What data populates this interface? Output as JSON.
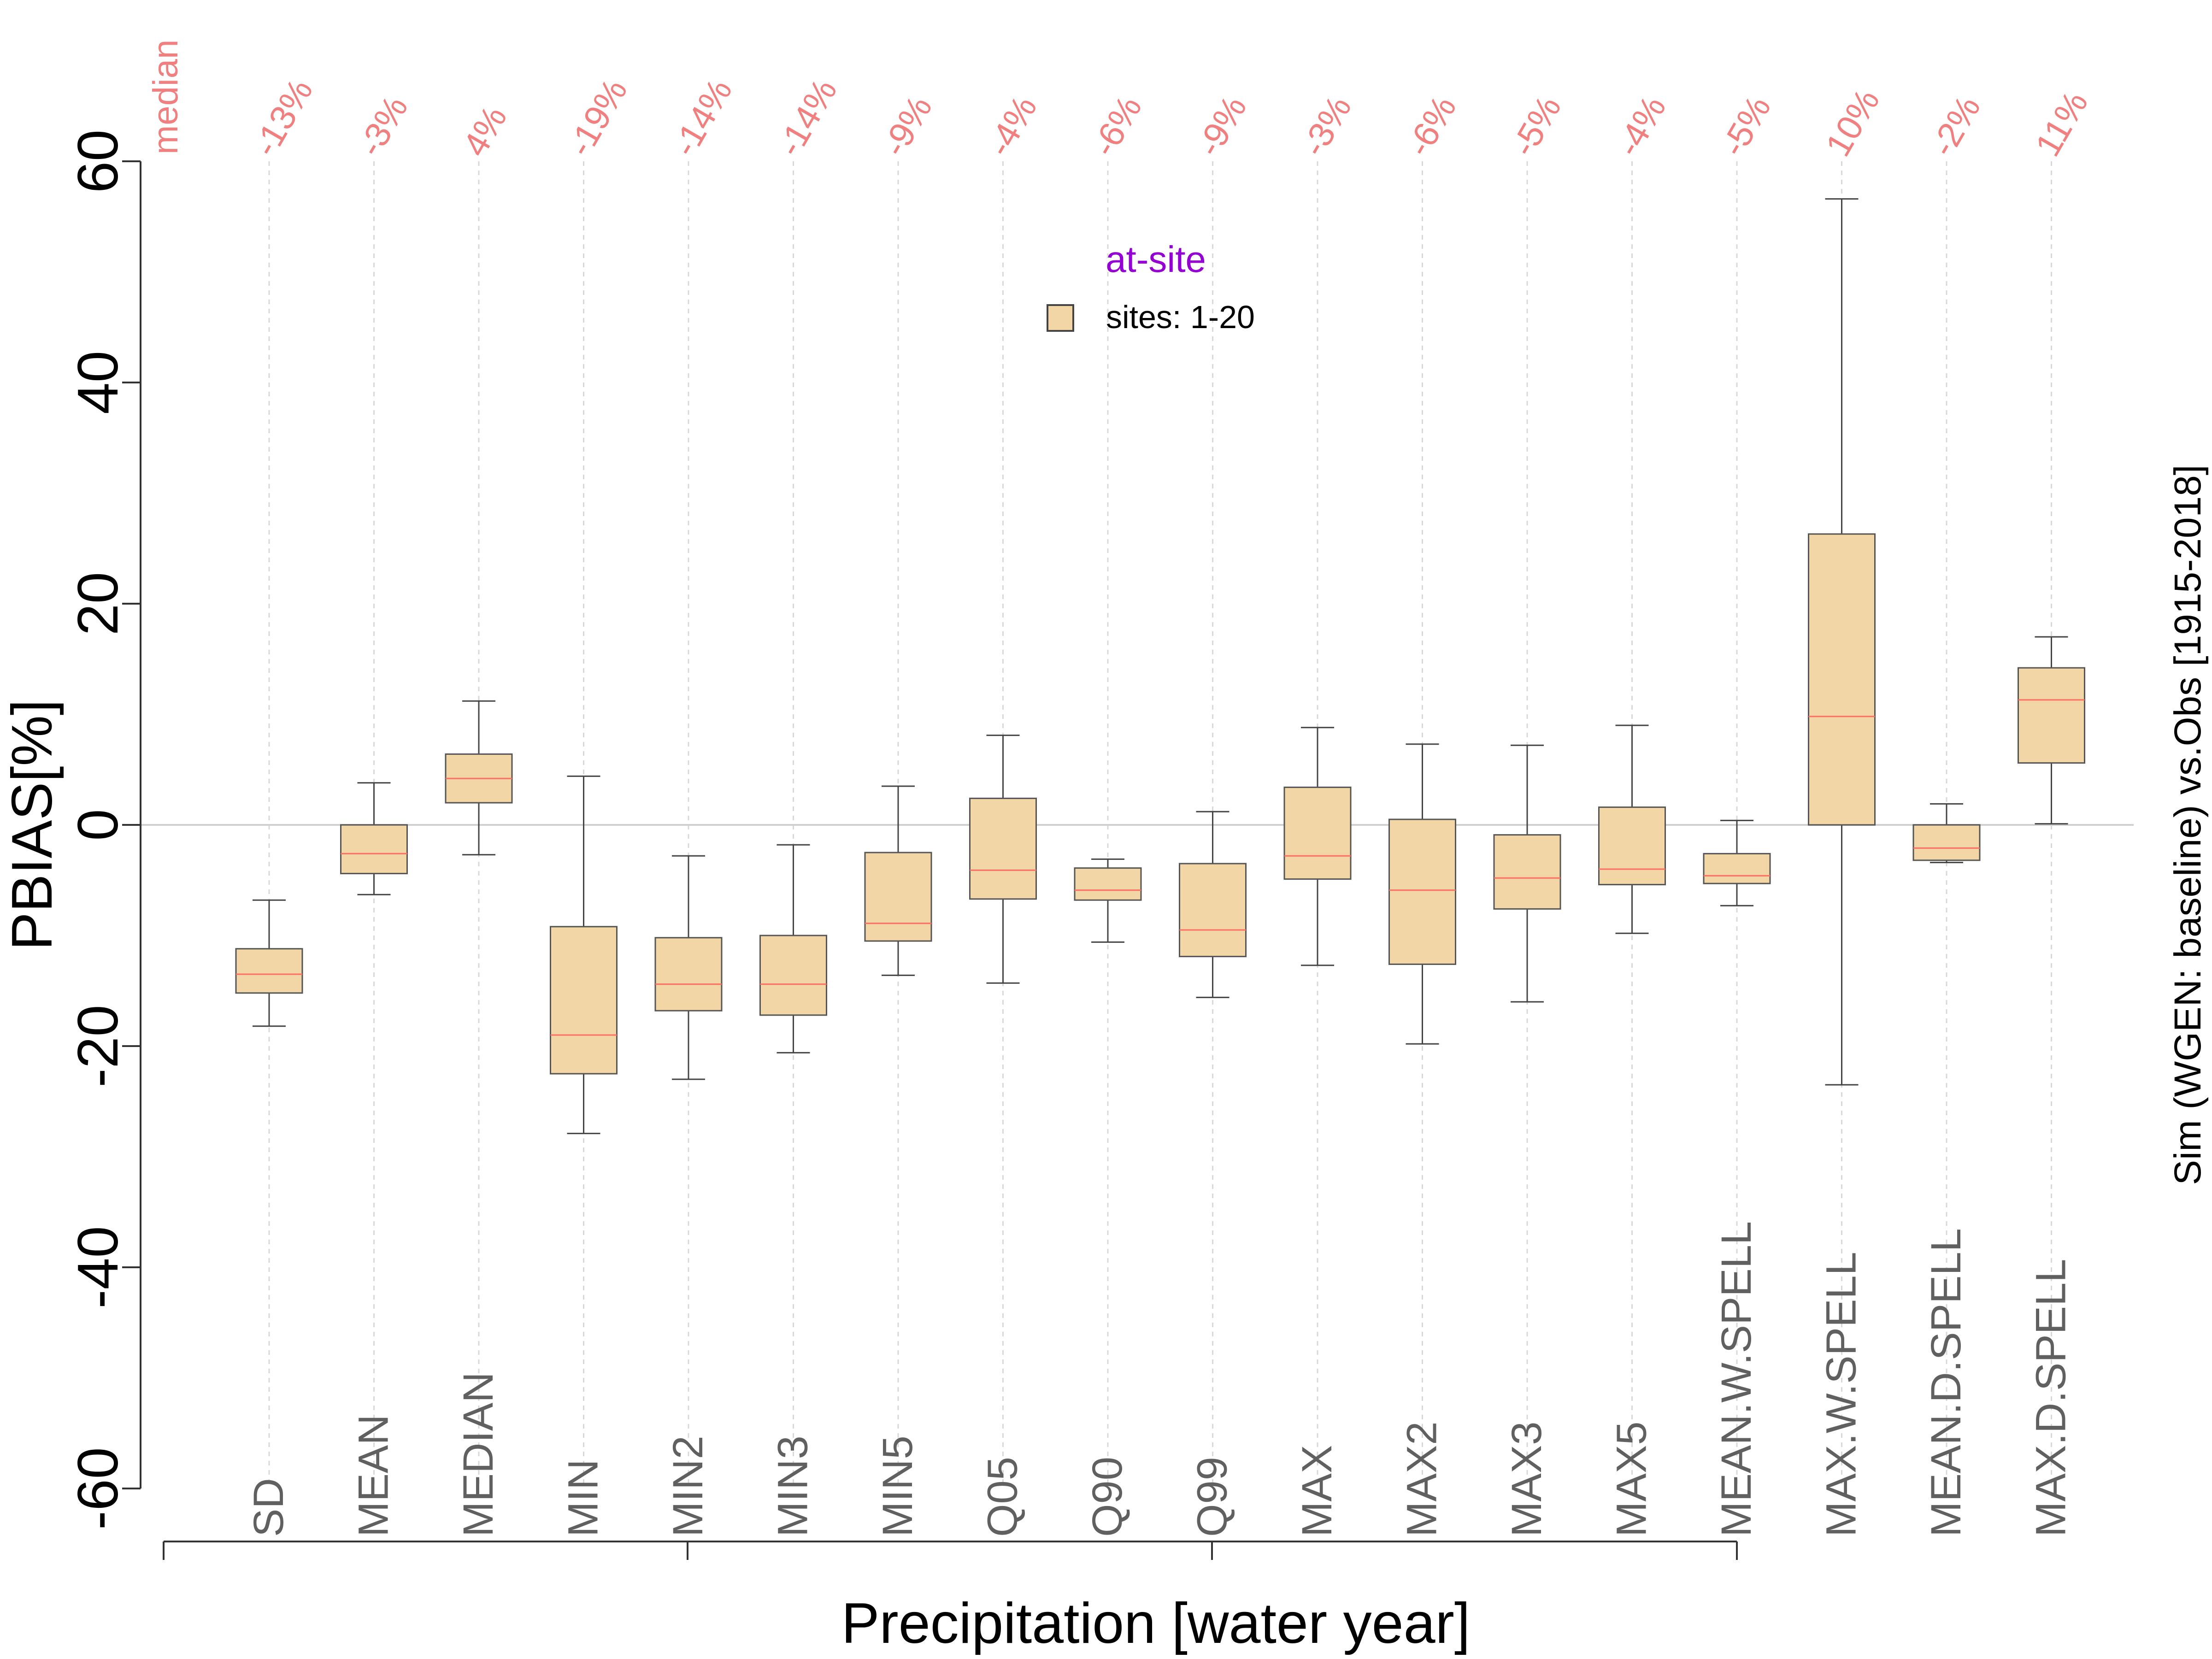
{
  "chart_data": {
    "type": "box",
    "xlabel": "Precipitation [water year]",
    "ylabel": "PBIAS[%]",
    "right_label": "Sim (WGEN: baseline) vs.Obs [1915-2018]",
    "median_row_label": "median",
    "ylim": [
      -60,
      60
    ],
    "yticks": [
      -60,
      -40,
      -20,
      0,
      20,
      40,
      60
    ],
    "legend": {
      "title": "at-site",
      "entry": "sites: 1-20",
      "position": "top-center"
    },
    "colors": {
      "box_fill": "#F3D6A5",
      "median_line": "#FF6F61",
      "pct_text": "#F08080",
      "legend_title": "#9400D3",
      "axis_text": "#606060"
    },
    "categories": [
      "SD",
      "MEAN",
      "MEDIAN",
      "MIN",
      "MIN2",
      "MIN3",
      "MIN5",
      "Q05",
      "Q90",
      "Q99",
      "MAX",
      "MAX2",
      "MAX3",
      "MAX5",
      "MEAN.W.SPELL",
      "MAX.W.SPELL",
      "MEAN.D.SPELL",
      "MAX.D.SPELL"
    ],
    "median_pct": [
      "-13%",
      "-3%",
      "4%",
      "-19%",
      "-14%",
      "-14%",
      "-9%",
      "-4%",
      "-6%",
      "-9%",
      "-3%",
      "-6%",
      "-5%",
      "-4%",
      "-5%",
      "10%",
      "-2%",
      "11%"
    ],
    "boxes": [
      {
        "min": -18.2,
        "q1": -15.2,
        "median": -13.5,
        "q3": -11.2,
        "max": -6.8
      },
      {
        "min": -6.3,
        "q1": -4.4,
        "median": -2.6,
        "q3": 0.0,
        "max": 3.8
      },
      {
        "min": -2.7,
        "q1": 2.0,
        "median": 4.2,
        "q3": 6.4,
        "max": 11.2
      },
      {
        "min": -27.9,
        "q1": -22.5,
        "median": -19.0,
        "q3": -9.2,
        "max": 4.4
      },
      {
        "min": -23.0,
        "q1": -16.8,
        "median": -14.4,
        "q3": -10.2,
        "max": -2.8
      },
      {
        "min": -20.6,
        "q1": -17.2,
        "median": -14.4,
        "q3": -10.0,
        "max": -1.8
      },
      {
        "min": -13.6,
        "q1": -10.5,
        "median": -8.9,
        "q3": -2.5,
        "max": 3.5
      },
      {
        "min": -14.3,
        "q1": -6.7,
        "median": -4.1,
        "q3": 2.4,
        "max": 8.1
      },
      {
        "min": -10.6,
        "q1": -6.8,
        "median": -5.9,
        "q3": -3.9,
        "max": -3.1
      },
      {
        "min": -15.6,
        "q1": -11.9,
        "median": -9.5,
        "q3": -3.5,
        "max": 1.2
      },
      {
        "min": -12.7,
        "q1": -4.9,
        "median": -2.8,
        "q3": 3.4,
        "max": 8.8
      },
      {
        "min": -19.8,
        "q1": -12.6,
        "median": -5.9,
        "q3": 0.5,
        "max": 7.3
      },
      {
        "min": -16.0,
        "q1": -7.6,
        "median": -4.8,
        "q3": -0.9,
        "max": 7.2
      },
      {
        "min": -9.8,
        "q1": -5.4,
        "median": -4.0,
        "q3": 1.6,
        "max": 9.0
      },
      {
        "min": -7.3,
        "q1": -5.3,
        "median": -4.6,
        "q3": -2.6,
        "max": 0.4
      },
      {
        "min": -23.5,
        "q1": 0.0,
        "median": 9.8,
        "q3": 26.3,
        "max": 56.6
      },
      {
        "min": -3.4,
        "q1": -3.2,
        "median": -2.1,
        "q3": 0.0,
        "max": 1.9
      },
      {
        "min": 0.1,
        "q1": 5.6,
        "median": 11.3,
        "q3": 14.2,
        "max": 17.0
      }
    ]
  }
}
